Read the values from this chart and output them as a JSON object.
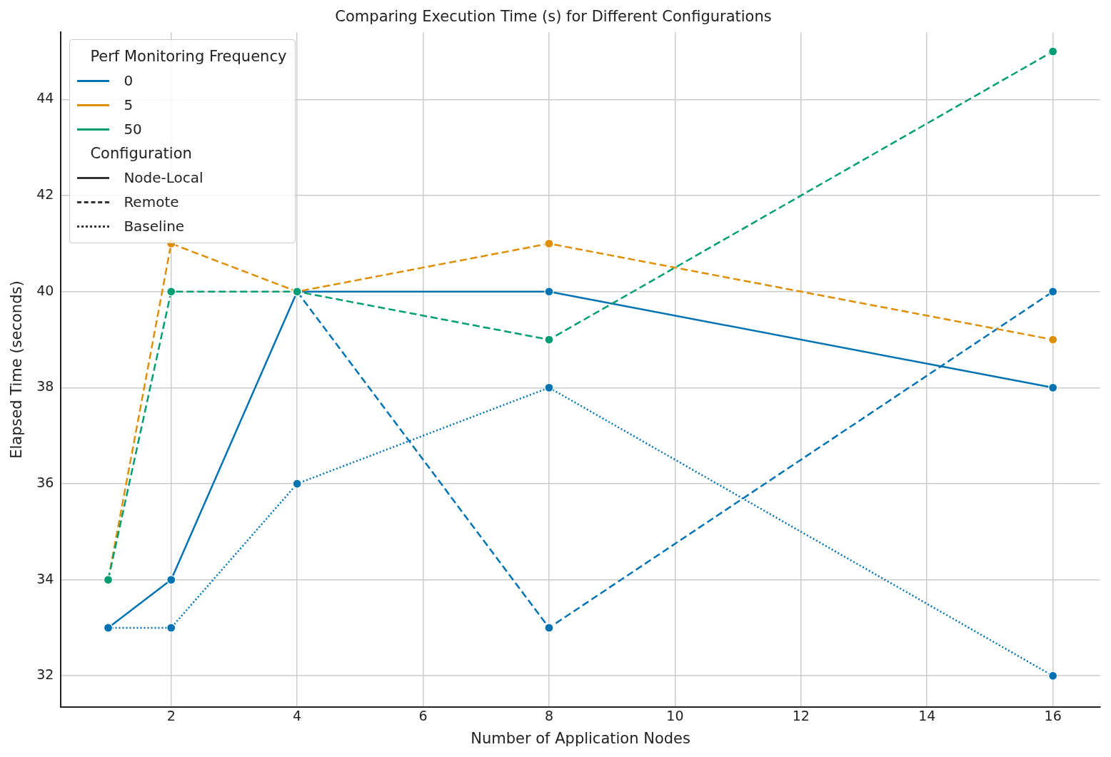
{
  "chart_data": {
    "type": "line",
    "title": "Comparing Execution Time (s) for Different Configurations",
    "xlabel": "Number of Application Nodes",
    "ylabel": "Elapsed Time (seconds)",
    "xlim": [
      0.25,
      16.75
    ],
    "xticks": [
      2,
      4,
      6,
      8,
      10,
      12,
      14,
      16
    ],
    "ylim": [
      31.35,
      45.4
    ],
    "yticks": [
      32,
      34,
      36,
      38,
      40,
      42,
      44
    ],
    "grid": true,
    "marker": "circle",
    "legend": "top left",
    "legend_title": "Perf Monitoring Frequency",
    "annotations": [
      "Configuration",
      "Node-Local",
      "Remote",
      "Baseline"
    ],
    "series": [
      {
        "name": "0",
        "line_style": "solid",
        "color": "#0173b2",
        "x": [
          1,
          2,
          4,
          8,
          16
        ],
        "values": [
          33,
          34,
          40,
          40,
          38
        ]
      },
      {
        "line_style": "dashed",
        "color": "#0173b2",
        "x": [
          4,
          8,
          16
        ],
        "values": [
          40,
          33,
          40
        ]
      },
      {
        "line_style": "dotted",
        "color": "#0173b2",
        "x": [
          1,
          2,
          4,
          8,
          16
        ],
        "values": [
          33,
          33,
          36,
          38,
          32
        ]
      },
      {
        "name": "5",
        "line_style": "dashed",
        "color": "#de8f05",
        "x": [
          1,
          2,
          4,
          8,
          16
        ],
        "values": [
          34,
          41,
          40,
          41,
          39
        ]
      },
      {
        "name": "50",
        "line_style": "dashed",
        "color": "#029e73",
        "x": [
          1,
          2,
          4,
          8,
          16
        ],
        "values": [
          34,
          40,
          40,
          39,
          45
        ]
      }
    ]
  }
}
